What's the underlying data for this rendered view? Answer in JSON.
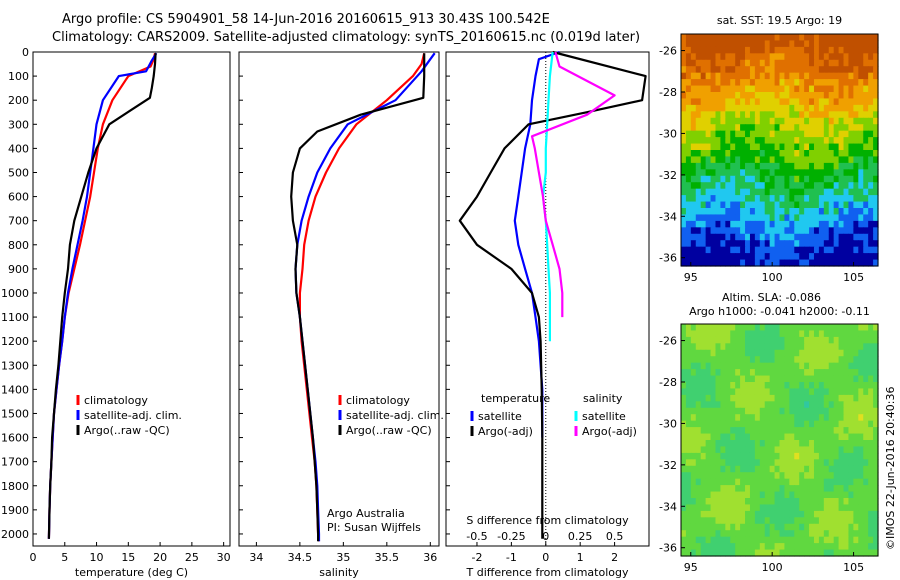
{
  "figure": {
    "title_line1": "Argo profile: CS 5904901_58 14-Jun-2016 20160615_913 30.43S 100.542E",
    "title_line2": "Climatology: CARS2009. Satellite-adjusted climatology: synTS_20160615.nc (0.019d later)",
    "credit": "©IMOS 22-Jun-2016 20:40:36"
  },
  "chart_data": [
    {
      "id": "temperature",
      "type": "line",
      "xlabel": "temperature (deg C)",
      "ylabel": "",
      "xlim": [
        0,
        31
      ],
      "ylim": [
        2050,
        0
      ],
      "xticks": [
        0,
        5,
        10,
        15,
        20,
        25,
        30
      ],
      "yticks": [
        0,
        100,
        200,
        300,
        400,
        500,
        600,
        700,
        800,
        900,
        1000,
        1100,
        1200,
        1300,
        1400,
        1500,
        1600,
        1700,
        1800,
        1900,
        2000
      ],
      "legend": [
        "climatology",
        "satellite-adj. clim.",
        "Argo(..raw -QC)"
      ],
      "series": [
        {
          "name": "climatology",
          "color": "#ff0000",
          "x": [
            19.2,
            19.0,
            18.5,
            15.0,
            12.5,
            11.0,
            10.2,
            9.6,
            9.0,
            8.2,
            7.4,
            6.5,
            5.6,
            5.0,
            4.6,
            4.1,
            3.7,
            3.3,
            3.1,
            2.9,
            2.7,
            2.6,
            2.5
          ],
          "depth": [
            5,
            30,
            60,
            100,
            200,
            300,
            400,
            500,
            600,
            700,
            800,
            900,
            1000,
            1100,
            1200,
            1300,
            1400,
            1500,
            1600,
            1700,
            1800,
            1900,
            2020
          ]
        },
        {
          "name": "satellite-adj. clim.",
          "color": "#0000ff",
          "x": [
            19.4,
            18.6,
            17.8,
            13.5,
            11.0,
            10.0,
            9.5,
            9.0,
            8.5,
            7.8,
            7.0,
            6.2,
            5.5,
            5.0,
            4.6,
            4.1,
            3.7,
            3.3,
            3.1,
            2.9,
            2.7,
            2.6,
            2.5
          ],
          "depth": [
            5,
            40,
            80,
            100,
            200,
            300,
            400,
            500,
            600,
            700,
            800,
            900,
            1000,
            1100,
            1200,
            1300,
            1400,
            1500,
            1600,
            1700,
            1800,
            1900,
            2020
          ]
        },
        {
          "name": "Argo(..raw -QC)",
          "color": "#000000",
          "x": [
            19.3,
            19.2,
            19.0,
            18.7,
            18.4,
            12.0,
            10.0,
            8.7,
            7.6,
            6.5,
            5.8,
            5.5,
            5.0,
            4.6,
            4.3,
            4.0,
            3.6,
            3.3,
            3.0,
            2.9,
            2.7,
            2.6,
            2.5
          ],
          "depth": [
            5,
            50,
            100,
            150,
            190,
            300,
            400,
            500,
            600,
            700,
            800,
            900,
            1000,
            1100,
            1200,
            1300,
            1400,
            1500,
            1600,
            1700,
            1800,
            1900,
            2020
          ]
        }
      ]
    },
    {
      "id": "salinity",
      "type": "line",
      "xlabel": "salinity",
      "ylabel": "",
      "xlim": [
        33.8,
        36.1
      ],
      "ylim": [
        2050,
        0
      ],
      "xticks": [
        34,
        34.5,
        35,
        35.5,
        36
      ],
      "xticklabels": [
        "34",
        "34.5",
        "35",
        "35.5",
        "36"
      ],
      "legend": [
        "climatology",
        "satellite-adj. clim.",
        "Argo(..raw -QC)"
      ],
      "annotation": [
        "Argo Australia",
        "PI: Susan Wijffels"
      ],
      "series": [
        {
          "name": "climatology",
          "color": "#ff0000",
          "x": [
            35.93,
            35.9,
            35.8,
            35.5,
            35.15,
            34.95,
            34.8,
            34.68,
            34.6,
            34.55,
            34.53,
            34.5,
            34.5,
            34.52,
            34.55,
            34.58,
            34.61,
            34.64,
            34.67,
            34.69,
            34.7,
            34.71,
            34.72
          ],
          "depth": [
            5,
            50,
            100,
            200,
            300,
            400,
            500,
            600,
            700,
            800,
            900,
            1000,
            1100,
            1200,
            1300,
            1400,
            1500,
            1600,
            1700,
            1800,
            1900,
            2000,
            2030
          ]
        },
        {
          "name": "satellite-adj. clim.",
          "color": "#0000ff",
          "x": [
            36.05,
            36.0,
            35.9,
            35.6,
            35.05,
            34.85,
            34.7,
            34.6,
            34.52,
            34.47,
            34.45,
            34.46,
            34.5,
            34.53,
            34.56,
            34.59,
            34.62,
            34.65,
            34.68,
            34.7,
            34.71,
            34.72,
            34.72
          ],
          "depth": [
            5,
            30,
            80,
            200,
            300,
            400,
            500,
            600,
            700,
            800,
            900,
            1000,
            1100,
            1200,
            1300,
            1400,
            1500,
            1600,
            1700,
            1800,
            1900,
            2000,
            2030
          ]
        },
        {
          "name": "Argo(..raw -QC)",
          "color": "#000000",
          "x": [
            35.93,
            35.93,
            35.92,
            35.2,
            34.7,
            34.5,
            34.42,
            34.4,
            34.42,
            34.47,
            34.45,
            34.46,
            34.5,
            34.53,
            34.56,
            34.59,
            34.62,
            34.65,
            34.67,
            34.69,
            34.7,
            34.71,
            34.71
          ],
          "depth": [
            5,
            100,
            190,
            260,
            330,
            400,
            500,
            600,
            700,
            800,
            900,
            1000,
            1100,
            1200,
            1300,
            1400,
            1500,
            1600,
            1700,
            1800,
            1900,
            2000,
            2030
          ]
        }
      ]
    },
    {
      "id": "difference",
      "type": "line",
      "xlabel": "T difference from climatology",
      "top_xlabel": "S difference from climatology",
      "xlim": [
        -2.9,
        3.0
      ],
      "ylim": [
        2050,
        0
      ],
      "xticks": [
        -2,
        -1,
        0,
        1,
        2
      ],
      "top_xticks": [
        -0.5,
        -0.25,
        0,
        0.25,
        0.5
      ],
      "top_xticklabels": [
        "-0.5",
        "-0.25",
        "0",
        "0.25",
        "0.5"
      ],
      "legend_headers": [
        "temperature",
        "salinity"
      ],
      "legend": [
        "satellite",
        "Argo(-adj)",
        "satellite",
        "Argo(-adj)"
      ],
      "series": [
        {
          "name": "temperature satellite",
          "color": "#0000ff",
          "x": [
            0.4,
            -0.2,
            -0.3,
            -0.4,
            -0.45,
            -0.6,
            -0.7,
            -0.8,
            -0.9,
            -0.8,
            -0.6,
            -0.4,
            -0.3,
            -0.2,
            -0.15,
            -0.1,
            -0.1,
            -0.1
          ],
          "depth": [
            0,
            30,
            100,
            200,
            300,
            400,
            500,
            600,
            700,
            800,
            900,
            1000,
            1100,
            1200,
            1300,
            1400,
            1500,
            1600
          ]
        },
        {
          "name": "temperature Argo(-adj)",
          "color": "#000000",
          "x": [
            0.2,
            2.9,
            2.8,
            1.2,
            -0.5,
            -1.2,
            -1.6,
            -2.0,
            -2.5,
            -2.0,
            -1.0,
            -0.4,
            -0.2,
            -0.15,
            -0.12,
            -0.1,
            -0.1,
            -0.1,
            -0.1,
            -0.1
          ],
          "depth": [
            0,
            100,
            200,
            250,
            300,
            400,
            500,
            600,
            700,
            800,
            900,
            1000,
            1100,
            1200,
            1400,
            1600,
            1800,
            1900,
            2000,
            2020
          ]
        },
        {
          "name": "salinity satellite",
          "color": "#00ffff",
          "x": [
            0.05,
            0.03,
            0.02,
            0.01,
            0.0,
            0.0,
            -0.02,
            0.0,
            0.01,
            0.02,
            0.03,
            0.03,
            0.03
          ],
          "depth": [
            0,
            100,
            200,
            300,
            400,
            500,
            600,
            700,
            800,
            900,
            1000,
            1100,
            1200
          ]
        },
        {
          "name": "salinity Argo(-adj)",
          "color": "#ff00ff",
          "x": [
            0.07,
            0.1,
            0.5,
            0.3,
            -0.1,
            -0.08,
            -0.05,
            -0.02,
            0.0,
            0.05,
            0.1,
            0.12,
            0.12
          ],
          "depth": [
            0,
            60,
            180,
            260,
            350,
            400,
            500,
            600,
            700,
            800,
            900,
            1000,
            1100
          ]
        }
      ]
    },
    {
      "id": "sst_map",
      "type": "heatmap",
      "title": "sat. SST: 19.5 Argo: 19",
      "xticks": [
        95,
        100,
        105
      ],
      "yticks": [
        -26,
        -28,
        -30,
        -32,
        -34,
        -36
      ],
      "xlim": [
        94.4,
        106.5
      ],
      "ylim": [
        -36.4,
        -25.2
      ],
      "colors": [
        "#0000a0",
        "#1060f0",
        "#20c8f0",
        "#20c050",
        "#00b000",
        "#80d000",
        "#e0d000",
        "#f0a000",
        "#e07000",
        "#c05000"
      ]
    },
    {
      "id": "sla_map",
      "type": "heatmap",
      "title_line1": "Altim. SLA: -0.086",
      "title_line2": "Argo h1000: -0.041 h2000: -0.11",
      "xticks": [
        95,
        100,
        105
      ],
      "yticks": [
        -26,
        -28,
        -30,
        -32,
        -34,
        -36
      ],
      "xlim": [
        94.4,
        106.5
      ],
      "ylim": [
        -36.4,
        -25.2
      ],
      "colors": [
        "#30c8a0",
        "#40d070",
        "#60d840",
        "#a0e030",
        "#e0e020"
      ]
    }
  ]
}
